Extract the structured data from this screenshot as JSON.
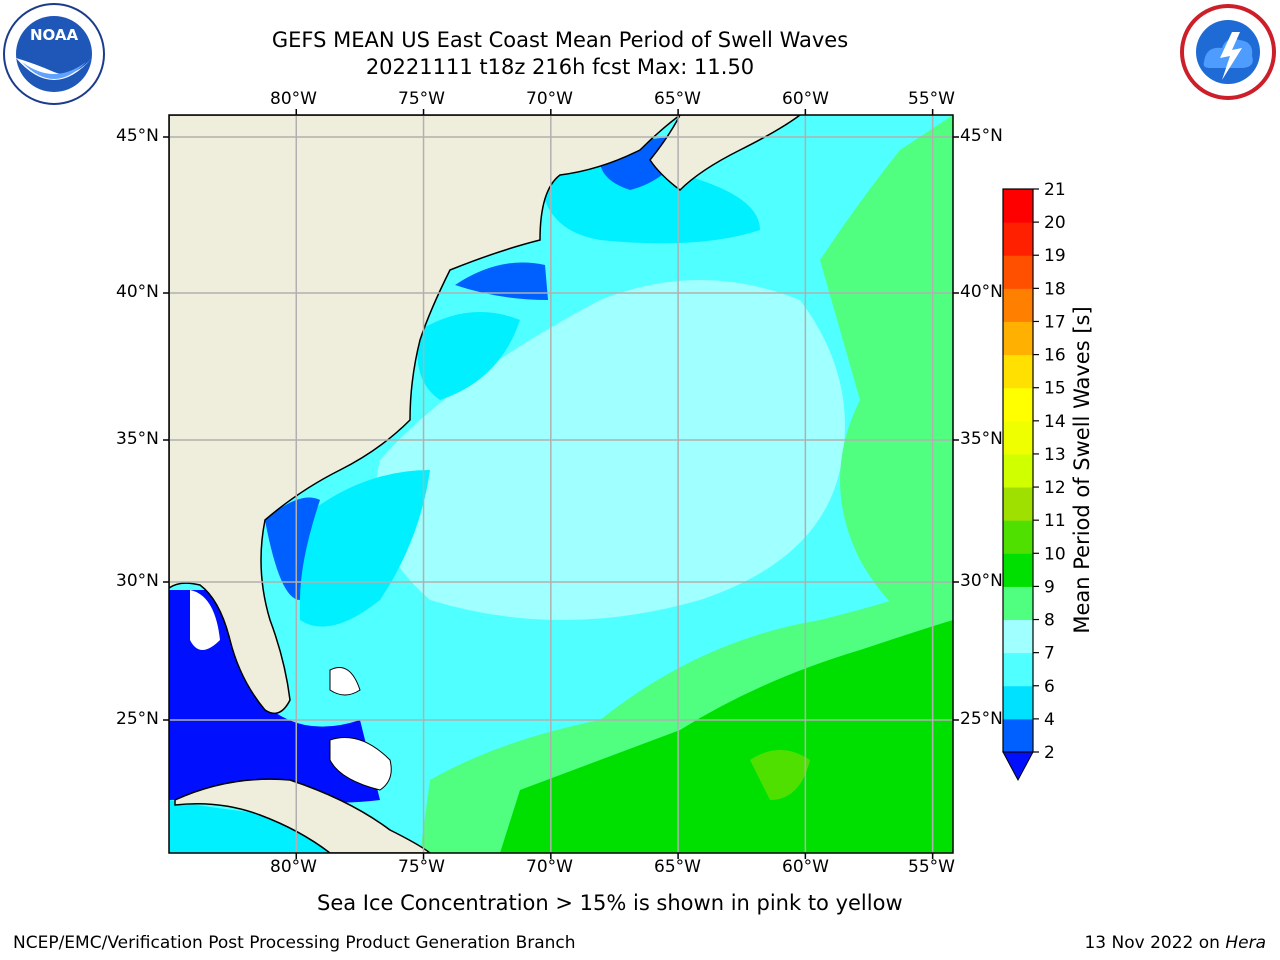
{
  "title": {
    "line1": "GEFS MEAN US East Coast Mean Period of Swell Waves",
    "line2": "20221111 t18z 216h fcst   Max: 11.50"
  },
  "logos": {
    "left": {
      "text": "NOAA",
      "icon": "noaa-logo-icon"
    },
    "right": {
      "icon": "nws-logo-icon"
    }
  },
  "map": {
    "lon_labels": [
      "80°W",
      "75°W",
      "70°W",
      "65°W",
      "60°W",
      "55°W"
    ],
    "lat_labels": [
      "45°N",
      "40°N",
      "35°N",
      "30°N",
      "25°N"
    ],
    "lon_values": [
      -80,
      -75,
      -70,
      -65,
      -60,
      -55
    ],
    "lat_values": [
      45,
      40,
      35,
      30,
      25
    ],
    "extent": {
      "lon_min": -85,
      "lon_max": -54.2,
      "lat_min": 20.3,
      "lat_max": 45.8
    },
    "colors": {
      "land": "#efeedc",
      "grid": "#b0b0b0",
      "coast": "#000000",
      "no_data": "#ffffff"
    }
  },
  "colorbar": {
    "label": "Mean Period of Swell Waves [s]",
    "ticks": [
      "2",
      "4",
      "6",
      "7",
      "8",
      "9",
      "10",
      "11",
      "12",
      "13",
      "14",
      "15",
      "16",
      "17",
      "18",
      "19",
      "20",
      "21"
    ],
    "colors": [
      "#0060ff",
      "#00e0ff",
      "#50ffff",
      "#a0ffff",
      "#50ff80",
      "#00e000",
      "#50e000",
      "#a0e000",
      "#d0ff00",
      "#f0ff00",
      "#ffff00",
      "#ffe000",
      "#ffb000",
      "#ff8000",
      "#ff5000",
      "#ff2000",
      "#ff0000"
    ],
    "under_color": "#0010ff"
  },
  "caption": "Sea Ice Concentration > 15% is shown in pink to yellow",
  "footer": {
    "left": "NCEP/EMC/Verification Post Processing Product Generation Branch",
    "date": "13 Nov 2022 on ",
    "host": "Hera"
  }
}
